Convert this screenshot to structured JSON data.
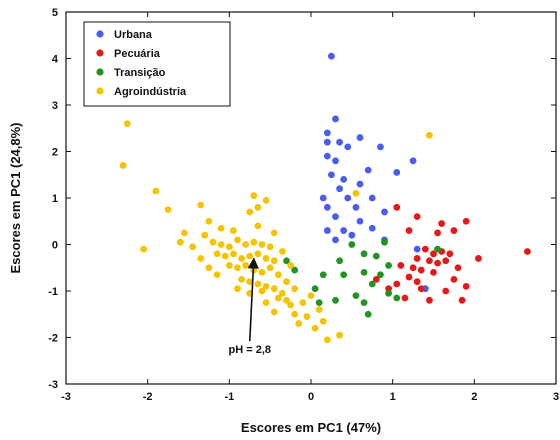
{
  "chart_data": {
    "type": "scatter",
    "xlabel": "Escores em PC1 (47%)",
    "ylabel": "Escores em PC1 (24,8%)",
    "xlim": [
      -3,
      3
    ],
    "ylim": [
      -3,
      5
    ],
    "xticks": [
      -3,
      -2,
      -1,
      0,
      1,
      2,
      3
    ],
    "yticks": [
      -3,
      -2,
      -1,
      0,
      1,
      2,
      3,
      4,
      5
    ],
    "grid": false,
    "legend_position": "top-left",
    "series": [
      {
        "name": "Urbana",
        "color": "#4b5cf0",
        "points": [
          [
            0.25,
            4.05
          ],
          [
            0.3,
            2.7
          ],
          [
            0.2,
            2.4
          ],
          [
            0.35,
            2.2
          ],
          [
            0.2,
            2.2
          ],
          [
            0.45,
            2.1
          ],
          [
            0.6,
            2.3
          ],
          [
            0.85,
            2.1
          ],
          [
            0.2,
            1.9
          ],
          [
            0.3,
            1.8
          ],
          [
            0.7,
            1.6
          ],
          [
            0.25,
            1.5
          ],
          [
            0.4,
            1.4
          ],
          [
            0.6,
            1.3
          ],
          [
            0.35,
            1.2
          ],
          [
            0.15,
            1.0
          ],
          [
            0.45,
            1.0
          ],
          [
            0.75,
            1.0
          ],
          [
            0.2,
            0.8
          ],
          [
            0.55,
            0.8
          ],
          [
            0.9,
            0.7
          ],
          [
            0.3,
            0.6
          ],
          [
            0.6,
            0.5
          ],
          [
            0.4,
            0.3
          ],
          [
            0.75,
            0.35
          ],
          [
            0.2,
            0.3
          ],
          [
            0.5,
            0.2
          ],
          [
            0.9,
            0.1
          ],
          [
            0.3,
            0.1
          ],
          [
            1.3,
            -0.1
          ],
          [
            1.4,
            -0.95
          ],
          [
            1.05,
            1.55
          ],
          [
            1.25,
            1.8
          ]
        ]
      },
      {
        "name": "Pecuária",
        "color": "#e81818",
        "points": [
          [
            1.05,
            0.8
          ],
          [
            1.3,
            0.6
          ],
          [
            1.6,
            0.45
          ],
          [
            1.9,
            0.5
          ],
          [
            1.2,
            0.3
          ],
          [
            1.55,
            0.25
          ],
          [
            1.75,
            0.3
          ],
          [
            2.65,
            -0.15
          ],
          [
            2.05,
            -0.3
          ],
          [
            1.4,
            -0.1
          ],
          [
            1.5,
            -0.2
          ],
          [
            1.6,
            -0.15
          ],
          [
            1.7,
            -0.2
          ],
          [
            1.3,
            -0.3
          ],
          [
            1.45,
            -0.35
          ],
          [
            1.55,
            -0.4
          ],
          [
            1.65,
            -0.35
          ],
          [
            1.1,
            -0.45
          ],
          [
            1.25,
            -0.5
          ],
          [
            1.35,
            -0.55
          ],
          [
            1.5,
            -0.6
          ],
          [
            1.8,
            -0.5
          ],
          [
            1.2,
            -0.7
          ],
          [
            1.05,
            -0.85
          ],
          [
            1.75,
            -0.75
          ],
          [
            1.9,
            -0.9
          ],
          [
            1.35,
            -0.95
          ],
          [
            1.65,
            -1.0
          ],
          [
            1.85,
            -1.2
          ],
          [
            1.45,
            -1.2
          ],
          [
            1.15,
            -1.15
          ],
          [
            0.8,
            -0.75
          ],
          [
            0.95,
            -0.95
          ],
          [
            1.3,
            -0.8
          ]
        ]
      },
      {
        "name": "Transição",
        "color": "#229422",
        "points": [
          [
            -0.3,
            -0.35
          ],
          [
            -0.2,
            -0.55
          ],
          [
            0.35,
            -0.35
          ],
          [
            0.5,
            -0.0
          ],
          [
            0.65,
            -0.2
          ],
          [
            0.8,
            -0.25
          ],
          [
            0.95,
            -0.45
          ],
          [
            0.65,
            -0.6
          ],
          [
            0.4,
            -0.65
          ],
          [
            0.75,
            -0.85
          ],
          [
            0.95,
            -1.05
          ],
          [
            0.55,
            -1.1
          ],
          [
            0.3,
            -1.2
          ],
          [
            0.7,
            -1.5
          ],
          [
            0.1,
            -1.25
          ],
          [
            0.05,
            -0.95
          ],
          [
            0.9,
            0.05
          ],
          [
            0.65,
            -1.25
          ],
          [
            1.55,
            -0.1
          ],
          [
            0.15,
            -0.65
          ],
          [
            0.85,
            -0.65
          ],
          [
            1.05,
            -1.15
          ]
        ]
      },
      {
        "name": "Agroindústria",
        "color": "#f5c400",
        "points": [
          [
            -2.3,
            1.7
          ],
          [
            -2.25,
            2.6
          ],
          [
            -1.9,
            1.15
          ],
          [
            -1.75,
            0.75
          ],
          [
            -2.05,
            -0.1
          ],
          [
            -1.35,
            0.85
          ],
          [
            -1.25,
            0.5
          ],
          [
            -1.1,
            0.35
          ],
          [
            -0.95,
            0.3
          ],
          [
            -0.7,
            1.05
          ],
          [
            -0.65,
            0.8
          ],
          [
            -0.75,
            0.7
          ],
          [
            -0.55,
            0.95
          ],
          [
            -1.3,
            0.2
          ],
          [
            -1.2,
            0.05
          ],
          [
            -1.1,
            0.0
          ],
          [
            -1.0,
            -0.05
          ],
          [
            -0.9,
            0.1
          ],
          [
            -0.8,
            0.0
          ],
          [
            -0.7,
            0.05
          ],
          [
            -0.6,
            0.0
          ],
          [
            -0.5,
            -0.05
          ],
          [
            -1.15,
            -0.2
          ],
          [
            -1.05,
            -0.25
          ],
          [
            -0.95,
            -0.2
          ],
          [
            -0.85,
            -0.3
          ],
          [
            -0.75,
            -0.25
          ],
          [
            -0.65,
            -0.2
          ],
          [
            -0.55,
            -0.3
          ],
          [
            -0.45,
            -0.35
          ],
          [
            -1.0,
            -0.45
          ],
          [
            -0.9,
            -0.5
          ],
          [
            -0.8,
            -0.45
          ],
          [
            -0.7,
            -0.55
          ],
          [
            -0.6,
            -0.6
          ],
          [
            -0.5,
            -0.5
          ],
          [
            -0.4,
            -0.65
          ],
          [
            -0.85,
            -0.75
          ],
          [
            -0.75,
            -0.8
          ],
          [
            -0.65,
            -0.85
          ],
          [
            -0.55,
            -0.9
          ],
          [
            -0.45,
            -0.95
          ],
          [
            -0.35,
            -1.05
          ],
          [
            -0.3,
            -1.2
          ],
          [
            -0.25,
            -1.3
          ],
          [
            -0.2,
            -1.5
          ],
          [
            -0.15,
            -1.7
          ],
          [
            -0.05,
            -1.55
          ],
          [
            0.05,
            -1.8
          ],
          [
            0.15,
            -1.65
          ],
          [
            0.2,
            -2.05
          ],
          [
            0.35,
            -1.95
          ],
          [
            0.1,
            -1.4
          ],
          [
            -0.55,
            -1.25
          ],
          [
            -0.45,
            -1.45
          ],
          [
            -1.25,
            -0.5
          ],
          [
            -1.35,
            -0.3
          ],
          [
            -1.45,
            -0.05
          ],
          [
            -1.6,
            0.05
          ],
          [
            -0.35,
            -0.15
          ],
          [
            -0.25,
            -0.45
          ],
          [
            -0.3,
            -0.8
          ],
          [
            -0.6,
            -1.0
          ],
          [
            -0.9,
            -0.95
          ],
          [
            1.45,
            2.35
          ],
          [
            0.55,
            1.1
          ],
          [
            -0.65,
            0.4
          ],
          [
            -0.45,
            0.25
          ],
          [
            -1.55,
            0.25
          ],
          [
            -0.2,
            -0.95
          ],
          [
            0.0,
            -1.1
          ],
          [
            -0.1,
            -1.25
          ],
          [
            -0.4,
            -1.15
          ],
          [
            -0.75,
            -1.05
          ],
          [
            -1.15,
            -0.65
          ]
        ]
      }
    ],
    "annotations": [
      {
        "text": "pH = 2,8",
        "x": -0.75,
        "y": -2.25,
        "arrow_to": [
          -0.7,
          -0.3
        ]
      }
    ]
  }
}
